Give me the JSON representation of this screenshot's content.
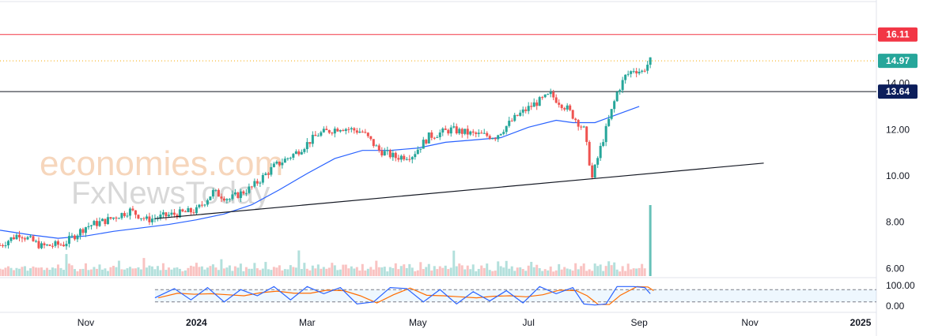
{
  "chart_data": {
    "type": "candlestick",
    "title": "",
    "watermark": {
      "line1": "economies.com",
      "line2": "FxNewsToday"
    },
    "y_axis": {
      "range": [
        5.6,
        17.6
      ],
      "tick_labels": [
        "6.00",
        "8.00",
        "10.00",
        "12.00",
        "14.00"
      ],
      "tick_values": [
        6,
        8,
        10,
        12,
        14
      ]
    },
    "x_axis": {
      "labels": [
        {
          "text": "Nov",
          "x": 0
        },
        {
          "text": "2024",
          "x": 2
        },
        {
          "text": "Mar",
          "x": 4
        },
        {
          "text": "May",
          "x": 6
        },
        {
          "text": "Jul",
          "x": 8
        },
        {
          "text": "Sep",
          "x": 10
        },
        {
          "text": "Nov",
          "x": 12
        },
        {
          "text": "2025",
          "x": 14
        }
      ],
      "range": [
        -1.55,
        15.2
      ]
    },
    "levels": [
      {
        "name": "resistance",
        "value": 16.11,
        "label": "16.11",
        "color": "#f23645",
        "style": "solid"
      },
      {
        "name": "last-price",
        "value": 14.97,
        "label": "14.97",
        "color": "#26a69a",
        "style": "dotted"
      },
      {
        "name": "support",
        "value": 13.64,
        "label": "13.64",
        "color": "#131722",
        "style": "solid"
      }
    ],
    "trendline": {
      "start": [
        1.25,
        8.15
      ],
      "end": [
        12.25,
        10.55
      ],
      "color": "#131722"
    },
    "moving_average": {
      "color": "#2962ff",
      "points": [
        [
          -1.55,
          7.65
        ],
        [
          -1.0,
          7.45
        ],
        [
          -0.5,
          7.3
        ],
        [
          0,
          7.4
        ],
        [
          0.5,
          7.6
        ],
        [
          1.0,
          7.75
        ],
        [
          1.5,
          7.9
        ],
        [
          2.0,
          8.1
        ],
        [
          2.5,
          8.35
        ],
        [
          3.0,
          8.75
        ],
        [
          3.5,
          9.4
        ],
        [
          4.0,
          10.1
        ],
        [
          4.5,
          10.75
        ],
        [
          5.0,
          11.1
        ],
        [
          5.5,
          11.1
        ],
        [
          6.0,
          11.2
        ],
        [
          6.5,
          11.45
        ],
        [
          7.0,
          11.55
        ],
        [
          7.5,
          11.65
        ],
        [
          8.0,
          12.1
        ],
        [
          8.5,
          12.4
        ],
        [
          8.8,
          12.3
        ],
        [
          9.2,
          12.3
        ],
        [
          9.6,
          12.65
        ],
        [
          10.0,
          13.0
        ]
      ]
    },
    "price_path": [
      [
        -1.55,
        7.0
      ],
      [
        -1.2,
        7.5
      ],
      [
        -0.8,
        6.95
      ],
      [
        -0.4,
        7.05
      ],
      [
        0,
        7.8
      ],
      [
        0.4,
        8.1
      ],
      [
        0.8,
        8.5
      ],
      [
        1.1,
        8.1
      ],
      [
        1.5,
        8.3
      ],
      [
        2.0,
        8.5
      ],
      [
        2.3,
        9.3
      ],
      [
        2.6,
        9.0
      ],
      [
        3.0,
        9.5
      ],
      [
        3.4,
        10.4
      ],
      [
        3.8,
        11.0
      ],
      [
        4.2,
        11.8
      ],
      [
        4.6,
        12.1
      ],
      [
        5.0,
        11.9
      ],
      [
        5.3,
        11.1
      ],
      [
        5.6,
        10.8
      ],
      [
        5.9,
        10.9
      ],
      [
        6.2,
        11.7
      ],
      [
        6.6,
        12.0
      ],
      [
        7.0,
        11.8
      ],
      [
        7.4,
        11.7
      ],
      [
        7.8,
        12.6
      ],
      [
        8.1,
        13.1
      ],
      [
        8.4,
        13.5
      ],
      [
        8.7,
        12.9
      ],
      [
        9.0,
        12.0
      ],
      [
        9.15,
        9.9
      ],
      [
        9.3,
        11.2
      ],
      [
        9.45,
        12.4
      ],
      [
        9.6,
        13.6
      ],
      [
        9.75,
        14.3
      ],
      [
        9.9,
        14.6
      ],
      [
        10.05,
        14.5
      ],
      [
        10.2,
        14.97
      ]
    ],
    "volume": {
      "spike": {
        "x": 10.2,
        "value": 1.0
      },
      "baseline_values": [
        0.08,
        0.12,
        0.1,
        0.14,
        0.09,
        0.11,
        0.13,
        0.1,
        0.15,
        0.12,
        0.09,
        0.1,
        0.16,
        0.13,
        0.11,
        0.17,
        0.1,
        0.12,
        0.09,
        0.14,
        0.11,
        0.13,
        0.1,
        0.12,
        0.28,
        0.14,
        0.15,
        0.13
      ]
    },
    "stochastic": {
      "tick_labels": [
        "100.00",
        "0.00"
      ],
      "tick_values": [
        100,
        0
      ],
      "bands": [
        80,
        20
      ],
      "k_color": "#2962ff",
      "d_color": "#ff6d00",
      "k_points": [
        [
          1.25,
          40
        ],
        [
          1.6,
          85
        ],
        [
          1.9,
          30
        ],
        [
          2.2,
          90
        ],
        [
          2.5,
          20
        ],
        [
          2.8,
          80
        ],
        [
          3.1,
          50
        ],
        [
          3.4,
          95
        ],
        [
          3.7,
          30
        ],
        [
          4.0,
          95
        ],
        [
          4.3,
          60
        ],
        [
          4.6,
          90
        ],
        [
          4.9,
          10
        ],
        [
          5.2,
          20
        ],
        [
          5.5,
          90
        ],
        [
          5.8,
          85
        ],
        [
          6.1,
          20
        ],
        [
          6.4,
          80
        ],
        [
          6.7,
          10
        ],
        [
          7.0,
          70
        ],
        [
          7.3,
          25
        ],
        [
          7.6,
          75
        ],
        [
          7.9,
          15
        ],
        [
          8.2,
          95
        ],
        [
          8.5,
          60
        ],
        [
          8.8,
          90
        ],
        [
          9.0,
          10
        ],
        [
          9.2,
          5
        ],
        [
          9.4,
          10
        ],
        [
          9.6,
          95
        ],
        [
          9.9,
          95
        ],
        [
          10.1,
          90
        ],
        [
          10.2,
          60
        ]
      ]
    }
  }
}
